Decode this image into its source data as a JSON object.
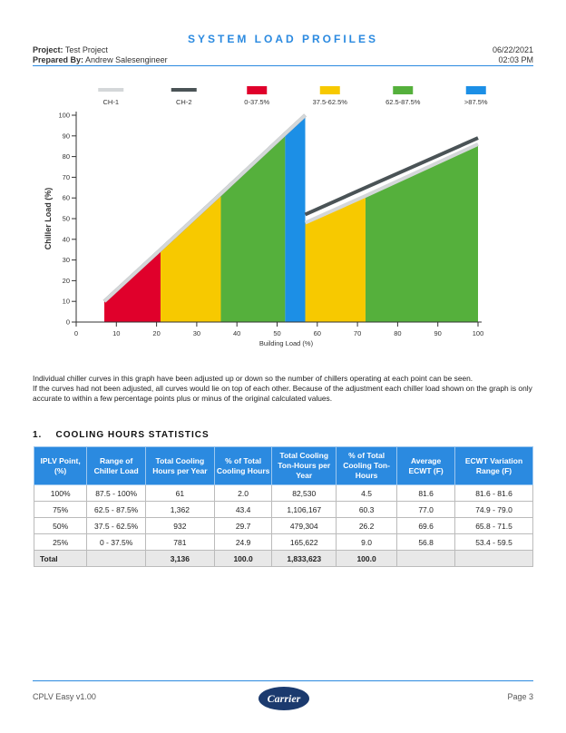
{
  "header": {
    "title": "SYSTEM LOAD PROFILES",
    "project_label": "Project:",
    "project": "Test Project",
    "prepared_label": "Prepared By:",
    "prepared_by": "Andrew Salesengineer",
    "date": "06/22/2021",
    "time": "02:03 PM"
  },
  "chart_data": {
    "type": "line",
    "xlabel": "Building Load (%)",
    "ylabel": "Chiller Load (%)",
    "x": [
      7,
      21,
      36,
      52,
      57,
      57,
      57,
      72,
      100
    ],
    "series": [
      {
        "name": "CH-1",
        "color": "#d4d7d9",
        "values": [
          10,
          35,
          62,
          91,
          100,
          null,
          48,
          61,
          86
        ]
      },
      {
        "name": "CH-2",
        "color": "#4a5356",
        "values": [
          10,
          35,
          62,
          91,
          100,
          null,
          52,
          65,
          89
        ]
      }
    ],
    "zones": [
      {
        "name": "0-37.5%",
        "color": "#e0002b",
        "ranges": [
          [
            7,
            21
          ]
        ]
      },
      {
        "name": "37.5-62.5%",
        "color": "#f7c900",
        "ranges": [
          [
            21,
            36
          ],
          [
            57,
            72
          ]
        ]
      },
      {
        "name": "62.5-87.5%",
        "color": "#55b03c",
        "ranges": [
          [
            36,
            52
          ],
          [
            72,
            100
          ]
        ]
      },
      {
        "name": ">87.5%",
        "color": "#1c8fe6",
        "ranges": [
          [
            52,
            57
          ]
        ]
      }
    ],
    "xlim": [
      0,
      100
    ],
    "ylim": [
      0,
      100
    ],
    "xticks": [
      0,
      10,
      20,
      30,
      40,
      50,
      60,
      70,
      80,
      90,
      100
    ],
    "yticks": [
      0,
      10,
      20,
      30,
      40,
      50,
      60,
      70,
      80,
      90,
      100
    ]
  },
  "notes": [
    "Individual chiller curves in this graph have been adjusted up or down so the number of chillers operating at each point can be seen.",
    "If the curves had not been adjusted, all curves would lie on top of each other. Because of the adjustment each chiller load shown on the graph is only accurate to within a few percentage points plus or minus of the original calculated values."
  ],
  "section": {
    "number": "1.",
    "title": "COOLING HOURS STATISTICS"
  },
  "table": {
    "columns": [
      "IPLV Point, (%)",
      "Range of Chiller Load",
      "Total Cooling Hours per Year",
      "% of Total Cooling Hours",
      "Total Cooling Ton-Hours per Year",
      "% of Total Cooling Ton-Hours",
      "Average ECWT (F)",
      "ECWT Variation Range (F)"
    ],
    "rows": [
      [
        "100%",
        "87.5 - 100%",
        "61",
        "2.0",
        "82,530",
        "4.5",
        "81.6",
        "81.6 - 81.6"
      ],
      [
        "75%",
        "62.5 - 87.5%",
        "1,362",
        "43.4",
        "1,106,167",
        "60.3",
        "77.0",
        "74.9 - 79.0"
      ],
      [
        "50%",
        "37.5 - 62.5%",
        "932",
        "29.7",
        "479,304",
        "26.2",
        "69.6",
        "65.8 - 71.5"
      ],
      [
        "25%",
        "0 - 37.5%",
        "781",
        "24.9",
        "165,622",
        "9.0",
        "56.8",
        "53.4 - 59.5"
      ]
    ],
    "total": [
      "Total",
      null,
      "3,136",
      "100.0",
      "1,833,623",
      "100.0",
      null,
      null
    ]
  },
  "footer": {
    "version": "CPLV Easy v1.00",
    "page": "Page 3",
    "logo": "Carrier"
  }
}
